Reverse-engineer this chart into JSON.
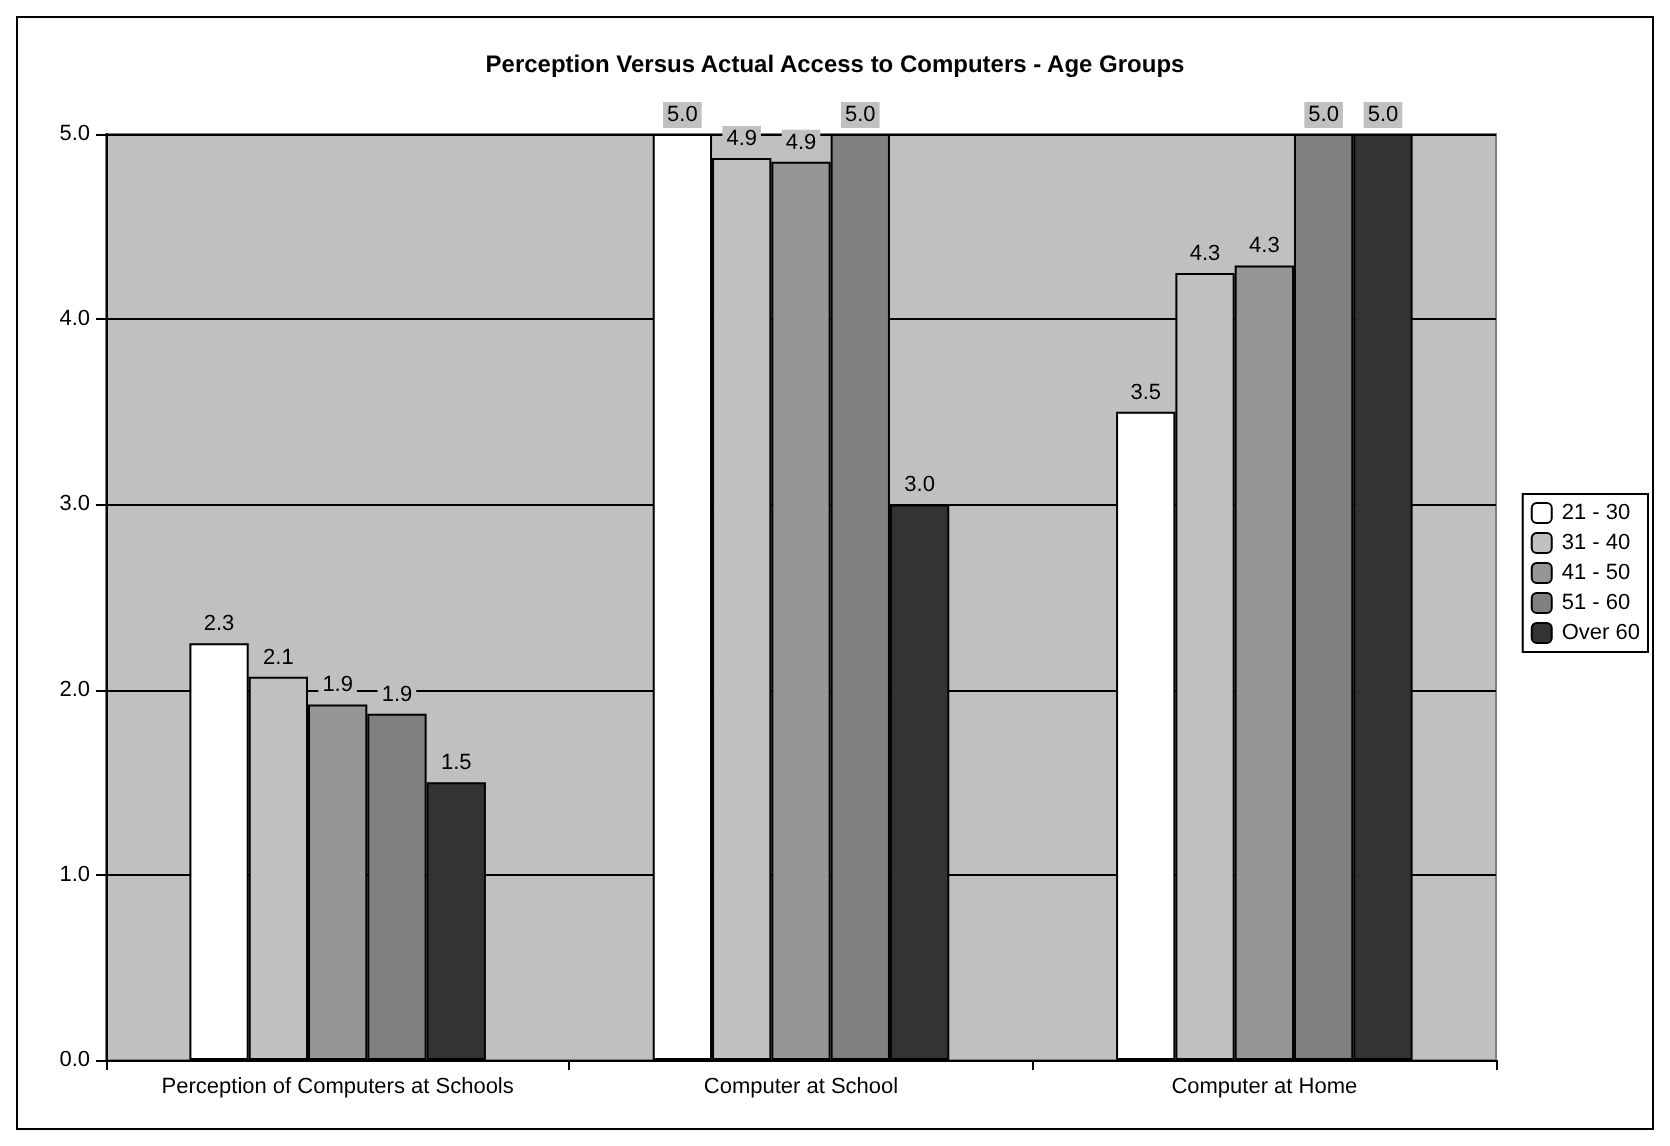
{
  "chart_data": {
    "type": "bar",
    "title": "Perception Versus Actual Access to Computers - Age Groups",
    "categories": [
      "Perception of Computers at Schools",
      "Computer at School",
      "Computer at Home"
    ],
    "series": [
      {
        "name": "21 - 30",
        "color": "#ffffff",
        "values": [
          2.25,
          5.0,
          3.5
        ],
        "value_labels": [
          "2.3",
          "5.0",
          "3.5"
        ]
      },
      {
        "name": "31 - 40",
        "color": "#c0c0c0",
        "values": [
          2.07,
          4.87,
          4.25
        ],
        "value_labels": [
          "2.1",
          "4.9",
          "4.3"
        ]
      },
      {
        "name": "41 - 50",
        "color": "#969696",
        "values": [
          1.92,
          4.85,
          4.29
        ],
        "value_labels": [
          "1.9",
          "4.9",
          "4.3"
        ]
      },
      {
        "name": "51 - 60",
        "color": "#808080",
        "values": [
          1.87,
          5.0,
          5.0
        ],
        "value_labels": [
          "1.9",
          "5.0",
          "5.0"
        ]
      },
      {
        "name": "Over 60",
        "color": "#333333",
        "values": [
          1.5,
          3.0,
          5.0
        ],
        "value_labels": [
          "1.5",
          "3.0",
          "5.0"
        ]
      }
    ],
    "ylim": [
      0,
      5
    ],
    "yticks": [
      {
        "value": 0,
        "label": "0.0"
      },
      {
        "value": 1,
        "label": "1.0"
      },
      {
        "value": 2,
        "label": "2.0"
      },
      {
        "value": 3,
        "label": "3.0"
      },
      {
        "value": 4,
        "label": "4.0"
      },
      {
        "value": 5,
        "label": "5.0"
      }
    ],
    "grid": "y",
    "legend": "right"
  }
}
